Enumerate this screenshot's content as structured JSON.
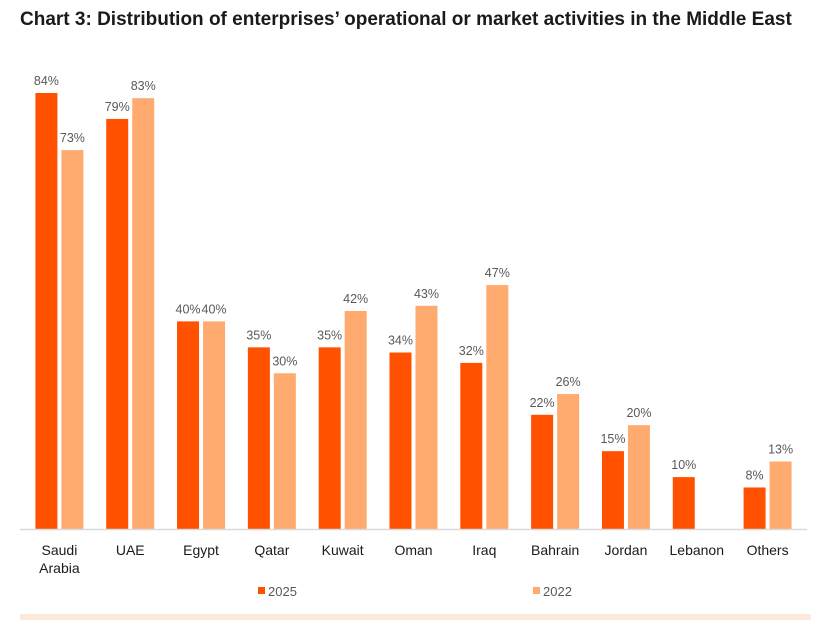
{
  "chart_data": {
    "type": "bar",
    "title": "Chart 3: Distribution of enterprises’ operational or market activities in the Middle East",
    "xlabel": "",
    "ylabel": "",
    "ylim": [
      0,
      84
    ],
    "grid": false,
    "legend_position": "bottom",
    "value_suffix": "%",
    "categories": [
      "Saudi Arabia",
      "UAE",
      "Egypt",
      "Qatar",
      "Kuwait",
      "Oman",
      "Iraq",
      "Bahrain",
      "Jordan",
      "Lebanon",
      "Others"
    ],
    "category_lines": [
      [
        "Saudi",
        "Arabia"
      ],
      [
        "UAE"
      ],
      [
        "Egypt"
      ],
      [
        "Qatar"
      ],
      [
        "Kuwait"
      ],
      [
        "Oman"
      ],
      [
        "Iraq"
      ],
      [
        "Bahrain"
      ],
      [
        "Jordan"
      ],
      [
        "Lebanon"
      ],
      [
        "Others"
      ]
    ],
    "series": [
      {
        "name": "2025",
        "color": "#ff5100",
        "values": [
          84,
          79,
          40,
          35,
          35,
          34,
          32,
          22,
          15,
          10,
          8
        ]
      },
      {
        "name": "2022",
        "color": "#ffaa6f",
        "values": [
          73,
          83,
          40,
          30,
          42,
          43,
          47,
          26,
          20,
          null,
          13
        ]
      }
    ]
  },
  "colors": {
    "axis": "#d9d9d9",
    "label_text": "#595959",
    "tick_text": "#1a1a1a",
    "footer_band": "#fde9d9"
  }
}
